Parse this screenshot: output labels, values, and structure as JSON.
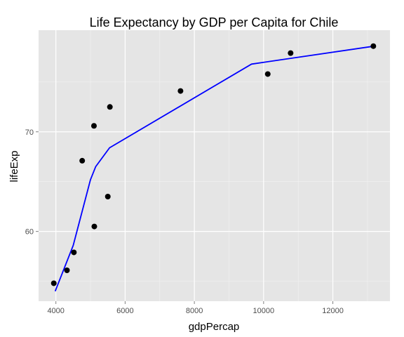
{
  "chart_data": {
    "type": "scatter",
    "title": "Life Expectancy by GDP per Capita for Chile",
    "xlabel": "gdpPercap",
    "ylabel": "lifeExp",
    "xlim": [
      3500,
      13650
    ],
    "ylim": [
      53,
      80.2
    ],
    "x_ticks": [
      4000,
      6000,
      8000,
      10000,
      12000
    ],
    "x_tick_labels": [
      "4000",
      "6000",
      "8000",
      "10000",
      "12000"
    ],
    "y_ticks": [
      60,
      70
    ],
    "y_tick_labels": [
      "60",
      "70"
    ],
    "grid": true,
    "legend": "none",
    "points": [
      {
        "x": 3940,
        "y": 54.8
      },
      {
        "x": 4320,
        "y": 56.1
      },
      {
        "x": 4520,
        "y": 57.9
      },
      {
        "x": 4760,
        "y": 67.1
      },
      {
        "x": 5100,
        "y": 70.6
      },
      {
        "x": 5110,
        "y": 60.5
      },
      {
        "x": 5500,
        "y": 63.5
      },
      {
        "x": 5560,
        "y": 72.5
      },
      {
        "x": 7600,
        "y": 74.1
      },
      {
        "x": 10120,
        "y": 75.8
      },
      {
        "x": 10780,
        "y": 77.9
      },
      {
        "x": 13170,
        "y": 78.6
      }
    ],
    "series": [
      {
        "type": "line",
        "color": "#0000ff",
        "points": [
          {
            "x": 3980,
            "y": 54.0
          },
          {
            "x": 4500,
            "y": 58.6
          },
          {
            "x": 5000,
            "y": 65.2
          },
          {
            "x": 5150,
            "y": 66.5
          },
          {
            "x": 5550,
            "y": 68.4
          },
          {
            "x": 9650,
            "y": 76.8
          },
          {
            "x": 13200,
            "y": 78.6
          }
        ]
      }
    ],
    "colors": {
      "panel": "#e5e5e5",
      "grid_major": "#ffffff",
      "grid_minor": "#f2f2f2",
      "point": "#000000",
      "line": "#0000ff"
    }
  }
}
